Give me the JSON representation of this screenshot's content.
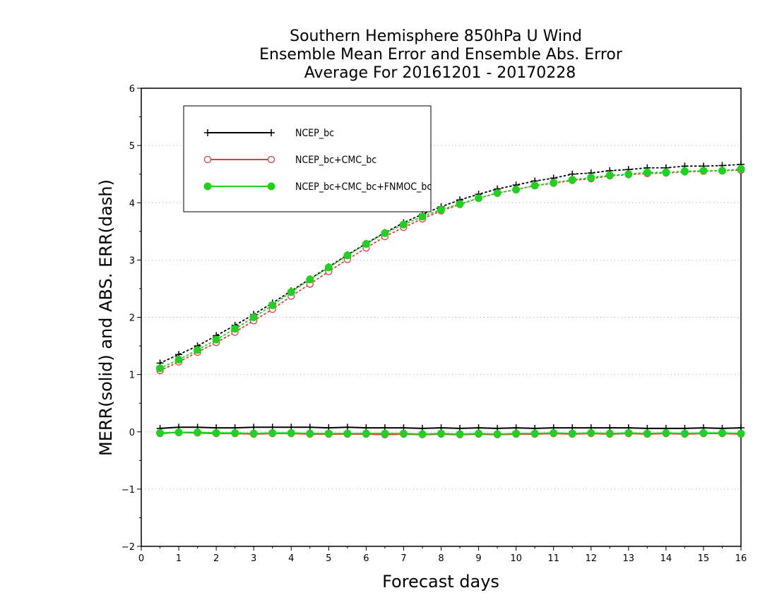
{
  "chart_data": {
    "type": "line",
    "title": [
      "Southern Hemisphere 850hPa U Wind",
      "Ensemble Mean Error and Ensemble Abs. Error",
      "Average For 20161201 - 20170228"
    ],
    "xlabel": "Forecast days",
    "ylabel": "MERR(solid) and ABS. ERR(dash)",
    "xlim": [
      0,
      16
    ],
    "ylim": [
      -2,
      6
    ],
    "xticks": [
      0,
      1,
      2,
      3,
      4,
      5,
      6,
      7,
      8,
      9,
      10,
      11,
      12,
      13,
      14,
      15,
      16
    ],
    "yticks": [
      -2,
      -1,
      0,
      1,
      2,
      3,
      4,
      5,
      6
    ],
    "grid": "horizontal dotted",
    "legend_position": "top-left",
    "x": [
      0.5,
      1,
      1.5,
      2,
      2.5,
      3,
      3.5,
      4,
      4.5,
      5,
      5.5,
      6,
      6.5,
      7,
      7.5,
      8,
      8.5,
      9,
      9.5,
      10,
      10.5,
      11,
      11.5,
      12,
      12.5,
      13,
      13.5,
      14,
      14.5,
      15,
      15.5,
      16
    ],
    "series": [
      {
        "name": "NCEP_bc",
        "color": "#000000",
        "marker": "plus",
        "merr": [
          0.06,
          0.08,
          0.08,
          0.07,
          0.07,
          0.08,
          0.08,
          0.08,
          0.08,
          0.07,
          0.08,
          0.07,
          0.07,
          0.07,
          0.06,
          0.07,
          0.06,
          0.07,
          0.06,
          0.07,
          0.06,
          0.07,
          0.07,
          0.07,
          0.07,
          0.07,
          0.06,
          0.06,
          0.06,
          0.07,
          0.06,
          0.07
        ],
        "abs_err": [
          1.2,
          1.35,
          1.5,
          1.68,
          1.86,
          2.05,
          2.25,
          2.46,
          2.67,
          2.88,
          3.09,
          3.29,
          3.48,
          3.65,
          3.8,
          3.93,
          4.05,
          4.15,
          4.24,
          4.31,
          4.38,
          4.43,
          4.5,
          4.52,
          4.56,
          4.58,
          4.61,
          4.61,
          4.64,
          4.64,
          4.65,
          4.67
        ]
      },
      {
        "name": "NCEP_bc+CMC_bc",
        "color": "#e83a3a",
        "marker": "open-circle",
        "merr": [
          -0.03,
          -0.01,
          -0.02,
          -0.03,
          -0.03,
          -0.04,
          -0.03,
          -0.03,
          -0.04,
          -0.04,
          -0.04,
          -0.04,
          -0.05,
          -0.04,
          -0.05,
          -0.04,
          -0.05,
          -0.04,
          -0.05,
          -0.04,
          -0.04,
          -0.03,
          -0.04,
          -0.03,
          -0.04,
          -0.03,
          -0.04,
          -0.03,
          -0.04,
          -0.03,
          -0.03,
          -0.04
        ],
        "abs_err": [
          1.07,
          1.22,
          1.39,
          1.56,
          1.74,
          1.94,
          2.14,
          2.37,
          2.58,
          2.8,
          3.01,
          3.21,
          3.41,
          3.57,
          3.72,
          3.86,
          3.97,
          4.08,
          4.17,
          4.23,
          4.3,
          4.34,
          4.39,
          4.42,
          4.47,
          4.49,
          4.51,
          4.52,
          4.54,
          4.55,
          4.56,
          4.57
        ]
      },
      {
        "name": "NCEP_bc+CMC_bc+FNMOC_bc",
        "color": "#1fd21f",
        "marker": "filled-circle",
        "merr": [
          -0.02,
          -0.01,
          -0.01,
          -0.02,
          -0.02,
          -0.03,
          -0.02,
          -0.02,
          -0.03,
          -0.03,
          -0.03,
          -0.03,
          -0.03,
          -0.03,
          -0.04,
          -0.03,
          -0.04,
          -0.03,
          -0.04,
          -0.03,
          -0.03,
          -0.02,
          -0.03,
          -0.02,
          -0.03,
          -0.02,
          -0.03,
          -0.02,
          -0.03,
          -0.02,
          -0.02,
          -0.03
        ],
        "abs_err": [
          1.11,
          1.26,
          1.43,
          1.61,
          1.8,
          2.0,
          2.21,
          2.44,
          2.66,
          2.87,
          3.08,
          3.28,
          3.47,
          3.62,
          3.76,
          3.88,
          3.98,
          4.08,
          4.17,
          4.23,
          4.3,
          4.35,
          4.4,
          4.44,
          4.48,
          4.5,
          4.53,
          4.53,
          4.55,
          4.56,
          4.56,
          4.59
        ]
      }
    ]
  }
}
